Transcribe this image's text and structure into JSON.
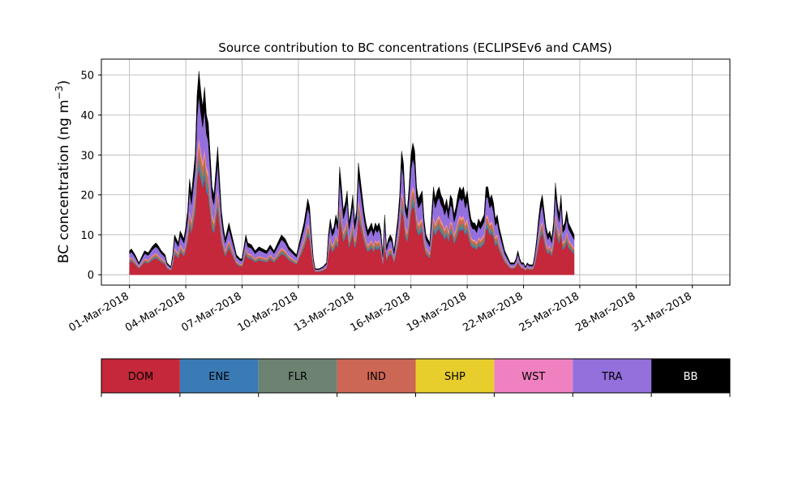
{
  "chart_data": {
    "type": "area",
    "stacked": true,
    "title": "Source contribution to BC concentrations (ECLIPSEv6 and CAMS)",
    "ylabel_text": "BC concentration (ng m",
    "ylabel_sup": "−3",
    "ylabel_close": ")",
    "xlabel": "",
    "ylim": [
      -2.6,
      54
    ],
    "yticks": [
      0,
      10,
      20,
      30,
      40,
      50
    ],
    "xrange_days": [
      -1.5,
      32.0
    ],
    "xticks": [
      {
        "day": 0,
        "label": "01-Mar-2018"
      },
      {
        "day": 3,
        "label": "04-Mar-2018"
      },
      {
        "day": 6,
        "label": "07-Mar-2018"
      },
      {
        "day": 9,
        "label": "10-Mar-2018"
      },
      {
        "day": 12,
        "label": "13-Mar-2018"
      },
      {
        "day": 15,
        "label": "16-Mar-2018"
      },
      {
        "day": 18,
        "label": "19-Mar-2018"
      },
      {
        "day": 21,
        "label": "22-Mar-2018"
      },
      {
        "day": 24,
        "label": "25-Mar-2018"
      },
      {
        "day": 27,
        "label": "28-Mar-2018"
      },
      {
        "day": 30,
        "label": "31-Mar-2018"
      }
    ],
    "grid": true,
    "legend_position": "below",
    "total_profile": [
      [
        0,
        6
      ],
      [
        0.1,
        6.5
      ],
      [
        0.3,
        5
      ],
      [
        0.5,
        3
      ],
      [
        0.7,
        5
      ],
      [
        0.8,
        6
      ],
      [
        1.0,
        5.5
      ],
      [
        1.2,
        7
      ],
      [
        1.4,
        8
      ],
      [
        1.5,
        7.5
      ],
      [
        1.7,
        6
      ],
      [
        1.9,
        5
      ],
      [
        2.0,
        3
      ],
      [
        2.2,
        2
      ],
      [
        2.3,
        5
      ],
      [
        2.4,
        10
      ],
      [
        2.6,
        8
      ],
      [
        2.7,
        11
      ],
      [
        2.9,
        9
      ],
      [
        3.0,
        12
      ],
      [
        3.1,
        16
      ],
      [
        3.2,
        24
      ],
      [
        3.3,
        20
      ],
      [
        3.5,
        30
      ],
      [
        3.6,
        45
      ],
      [
        3.7,
        51
      ],
      [
        3.8,
        46
      ],
      [
        3.9,
        42
      ],
      [
        4.0,
        47
      ],
      [
        4.1,
        40
      ],
      [
        4.2,
        38
      ],
      [
        4.3,
        30
      ],
      [
        4.4,
        22
      ],
      [
        4.5,
        20
      ],
      [
        4.6,
        26
      ],
      [
        4.7,
        32
      ],
      [
        4.8,
        24
      ],
      [
        4.9,
        16
      ],
      [
        5.0,
        12
      ],
      [
        5.1,
        9
      ],
      [
        5.3,
        13
      ],
      [
        5.5,
        9
      ],
      [
        5.7,
        5
      ],
      [
        5.9,
        4
      ],
      [
        6.0,
        4
      ],
      [
        6.2,
        10
      ],
      [
        6.3,
        8
      ],
      [
        6.5,
        7.5
      ],
      [
        6.7,
        6
      ],
      [
        6.9,
        7
      ],
      [
        7.1,
        6.5
      ],
      [
        7.3,
        6
      ],
      [
        7.5,
        7.5
      ],
      [
        7.7,
        6
      ],
      [
        7.9,
        8
      ],
      [
        8.1,
        10
      ],
      [
        8.3,
        9
      ],
      [
        8.5,
        7
      ],
      [
        8.7,
        6
      ],
      [
        8.9,
        5
      ],
      [
        9.1,
        9
      ],
      [
        9.3,
        13
      ],
      [
        9.5,
        19
      ],
      [
        9.6,
        17
      ],
      [
        9.7,
        10
      ],
      [
        9.8,
        4
      ],
      [
        9.9,
        1.5
      ],
      [
        10.1,
        1.5
      ],
      [
        10.3,
        2
      ],
      [
        10.5,
        3
      ],
      [
        10.6,
        10
      ],
      [
        10.7,
        14
      ],
      [
        10.8,
        11
      ],
      [
        10.9,
        12
      ],
      [
        11.0,
        15
      ],
      [
        11.1,
        13
      ],
      [
        11.2,
        27
      ],
      [
        11.3,
        22
      ],
      [
        11.4,
        16
      ],
      [
        11.5,
        18
      ],
      [
        11.6,
        21
      ],
      [
        11.7,
        13
      ],
      [
        11.8,
        16
      ],
      [
        11.9,
        20
      ],
      [
        12.0,
        13
      ],
      [
        12.1,
        16
      ],
      [
        12.2,
        28
      ],
      [
        12.3,
        24
      ],
      [
        12.4,
        20
      ],
      [
        12.5,
        16
      ],
      [
        12.6,
        13
      ],
      [
        12.7,
        11
      ],
      [
        12.8,
        12
      ],
      [
        12.9,
        13
      ],
      [
        13.0,
        11
      ],
      [
        13.1,
        13
      ],
      [
        13.2,
        12
      ],
      [
        13.3,
        13
      ],
      [
        13.4,
        11
      ],
      [
        13.5,
        5
      ],
      [
        13.6,
        15
      ],
      [
        13.7,
        7
      ],
      [
        13.8,
        9
      ],
      [
        13.9,
        10
      ],
      [
        14.0,
        9
      ],
      [
        14.1,
        6
      ],
      [
        14.2,
        10
      ],
      [
        14.3,
        14
      ],
      [
        14.4,
        20
      ],
      [
        14.5,
        31
      ],
      [
        14.6,
        28
      ],
      [
        14.7,
        18
      ],
      [
        14.8,
        16
      ],
      [
        14.9,
        22
      ],
      [
        15.0,
        30
      ],
      [
        15.1,
        33
      ],
      [
        15.2,
        31
      ],
      [
        15.3,
        22
      ],
      [
        15.4,
        19
      ],
      [
        15.5,
        20
      ],
      [
        15.6,
        21
      ],
      [
        15.7,
        14
      ],
      [
        15.8,
        10
      ],
      [
        15.9,
        9
      ],
      [
        16.0,
        8
      ],
      [
        16.1,
        15
      ],
      [
        16.2,
        22
      ],
      [
        16.3,
        19
      ],
      [
        16.4,
        21
      ],
      [
        16.5,
        22
      ],
      [
        16.6,
        20
      ],
      [
        16.7,
        19
      ],
      [
        16.8,
        17
      ],
      [
        16.9,
        19
      ],
      [
        17.0,
        16
      ],
      [
        17.1,
        20
      ],
      [
        17.2,
        19
      ],
      [
        17.3,
        15
      ],
      [
        17.4,
        17
      ],
      [
        17.5,
        20
      ],
      [
        17.6,
        22
      ],
      [
        17.7,
        21
      ],
      [
        17.8,
        22
      ],
      [
        17.9,
        19
      ],
      [
        18.0,
        21
      ],
      [
        18.1,
        17
      ],
      [
        18.2,
        14
      ],
      [
        18.3,
        13
      ],
      [
        18.4,
        13
      ],
      [
        18.5,
        12
      ],
      [
        18.6,
        14
      ],
      [
        18.7,
        13
      ],
      [
        18.8,
        14
      ],
      [
        18.9,
        15
      ],
      [
        19.0,
        22
      ],
      [
        19.1,
        22
      ],
      [
        19.2,
        19
      ],
      [
        19.3,
        20
      ],
      [
        19.4,
        18
      ],
      [
        19.5,
        14
      ],
      [
        19.6,
        15
      ],
      [
        19.7,
        12
      ],
      [
        19.8,
        10
      ],
      [
        19.9,
        8
      ],
      [
        20.0,
        6
      ],
      [
        20.1,
        5
      ],
      [
        20.2,
        4
      ],
      [
        20.3,
        3
      ],
      [
        20.4,
        3
      ],
      [
        20.5,
        3
      ],
      [
        20.6,
        4
      ],
      [
        20.7,
        6
      ],
      [
        20.8,
        4
      ],
      [
        20.9,
        3
      ],
      [
        21.0,
        3
      ],
      [
        21.1,
        2
      ],
      [
        21.2,
        3
      ],
      [
        21.3,
        2.5
      ],
      [
        21.4,
        2.5
      ],
      [
        21.5,
        2.5
      ],
      [
        21.6,
        5
      ],
      [
        21.7,
        9
      ],
      [
        21.8,
        14
      ],
      [
        21.9,
        18
      ],
      [
        22.0,
        20
      ],
      [
        22.1,
        16
      ],
      [
        22.2,
        12
      ],
      [
        22.3,
        10
      ],
      [
        22.4,
        11
      ],
      [
        22.5,
        9
      ],
      [
        22.6,
        13
      ],
      [
        22.7,
        23
      ],
      [
        22.8,
        18
      ],
      [
        22.9,
        15
      ],
      [
        23.0,
        20
      ],
      [
        23.1,
        12
      ],
      [
        23.2,
        13
      ],
      [
        23.3,
        16
      ],
      [
        23.4,
        13
      ],
      [
        23.5,
        12
      ],
      [
        23.6,
        11
      ],
      [
        23.7,
        10
      ]
    ],
    "shares": [
      0.52,
      0.025,
      0.045,
      0.055,
      0.01,
      0.025,
      0.2,
      0.12
    ],
    "display_offset_days": 0,
    "series": [
      {
        "name": "DOM",
        "color": "#c4283a"
      },
      {
        "name": "ENE",
        "color": "#3a7bb6"
      },
      {
        "name": "FLR",
        "color": "#6e8271"
      },
      {
        "name": "IND",
        "color": "#cc6655"
      },
      {
        "name": "SHP",
        "color": "#e8ce2c"
      },
      {
        "name": "WST",
        "color": "#f081c0"
      },
      {
        "name": "TRA",
        "color": "#9370db"
      },
      {
        "name": "BB",
        "color": "#000000"
      }
    ],
    "legend_text_colors": [
      "#000000",
      "#000000",
      "#000000",
      "#000000",
      "#000000",
      "#000000",
      "#000000",
      "#ffffff"
    ]
  }
}
